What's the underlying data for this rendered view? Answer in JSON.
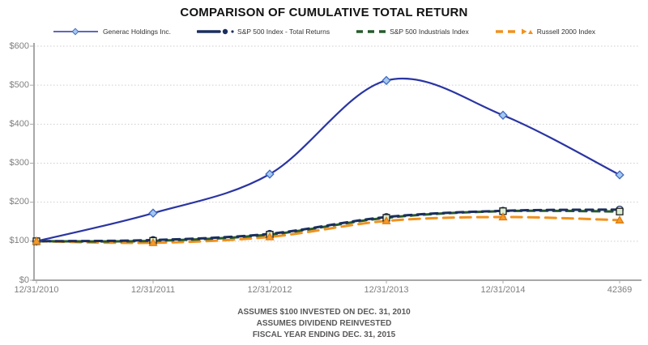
{
  "title": "COMPARISON OF CUMULATIVE TOTAL RETURN",
  "footnotes": [
    "ASSUMES $100 INVESTED ON DEC. 31, 2010",
    "ASSUMES DIVIDEND REINVESTED",
    "FISCAL YEAR ENDING DEC. 31, 2015"
  ],
  "chart_data": {
    "type": "line",
    "title": "COMPARISON OF CUMULATIVE TOTAL RETURN",
    "xlabel": "",
    "ylabel": "",
    "categories": [
      "12/31/2010",
      "12/31/2011",
      "12/31/2012",
      "12/31/2013",
      "12/31/2014",
      "42369"
    ],
    "y_ticks": [
      "$0",
      "$100",
      "$200",
      "$300",
      "$400",
      "$500",
      "$600"
    ],
    "ylim": [
      0,
      600
    ],
    "grid": "horizontal-dotted",
    "legend_position": "top",
    "series": [
      {
        "name": "Generac Holdings Inc.",
        "values": [
          100,
          172,
          272,
          512,
          423,
          270
        ],
        "color": "#2A35A2",
        "line": "solid",
        "marker": "diamond",
        "marker_fill": "#A5C8F0",
        "marker_stroke": "#4169C0",
        "legend_bullet": false
      },
      {
        "name": "S&P 500 Index - Total Returns",
        "values": [
          100,
          103,
          119,
          162,
          178,
          181
        ],
        "color": "#1B2F5E",
        "line": "dashed",
        "marker": "circle",
        "marker_fill": "#FFFFFF",
        "marker_stroke": "#1B2F5E",
        "legend_bullet": true
      },
      {
        "name": "S&P 500 Industrials Index",
        "values": [
          100,
          101,
          117,
          160,
          177,
          176
        ],
        "color": "#265B2B",
        "line": "dashed",
        "marker": "square",
        "marker_fill": "#D9EED4",
        "marker_stroke": "#1C1C1C",
        "legend_bullet": false
      },
      {
        "name": "Russell 2000 Index",
        "values": [
          100,
          96,
          111,
          152,
          162,
          154
        ],
        "color": "#F0921E",
        "line": "dashed",
        "marker": "triangle",
        "marker_fill": "#F59A2D",
        "marker_stroke": "#DD7E10",
        "legend_bullet": true
      }
    ]
  }
}
